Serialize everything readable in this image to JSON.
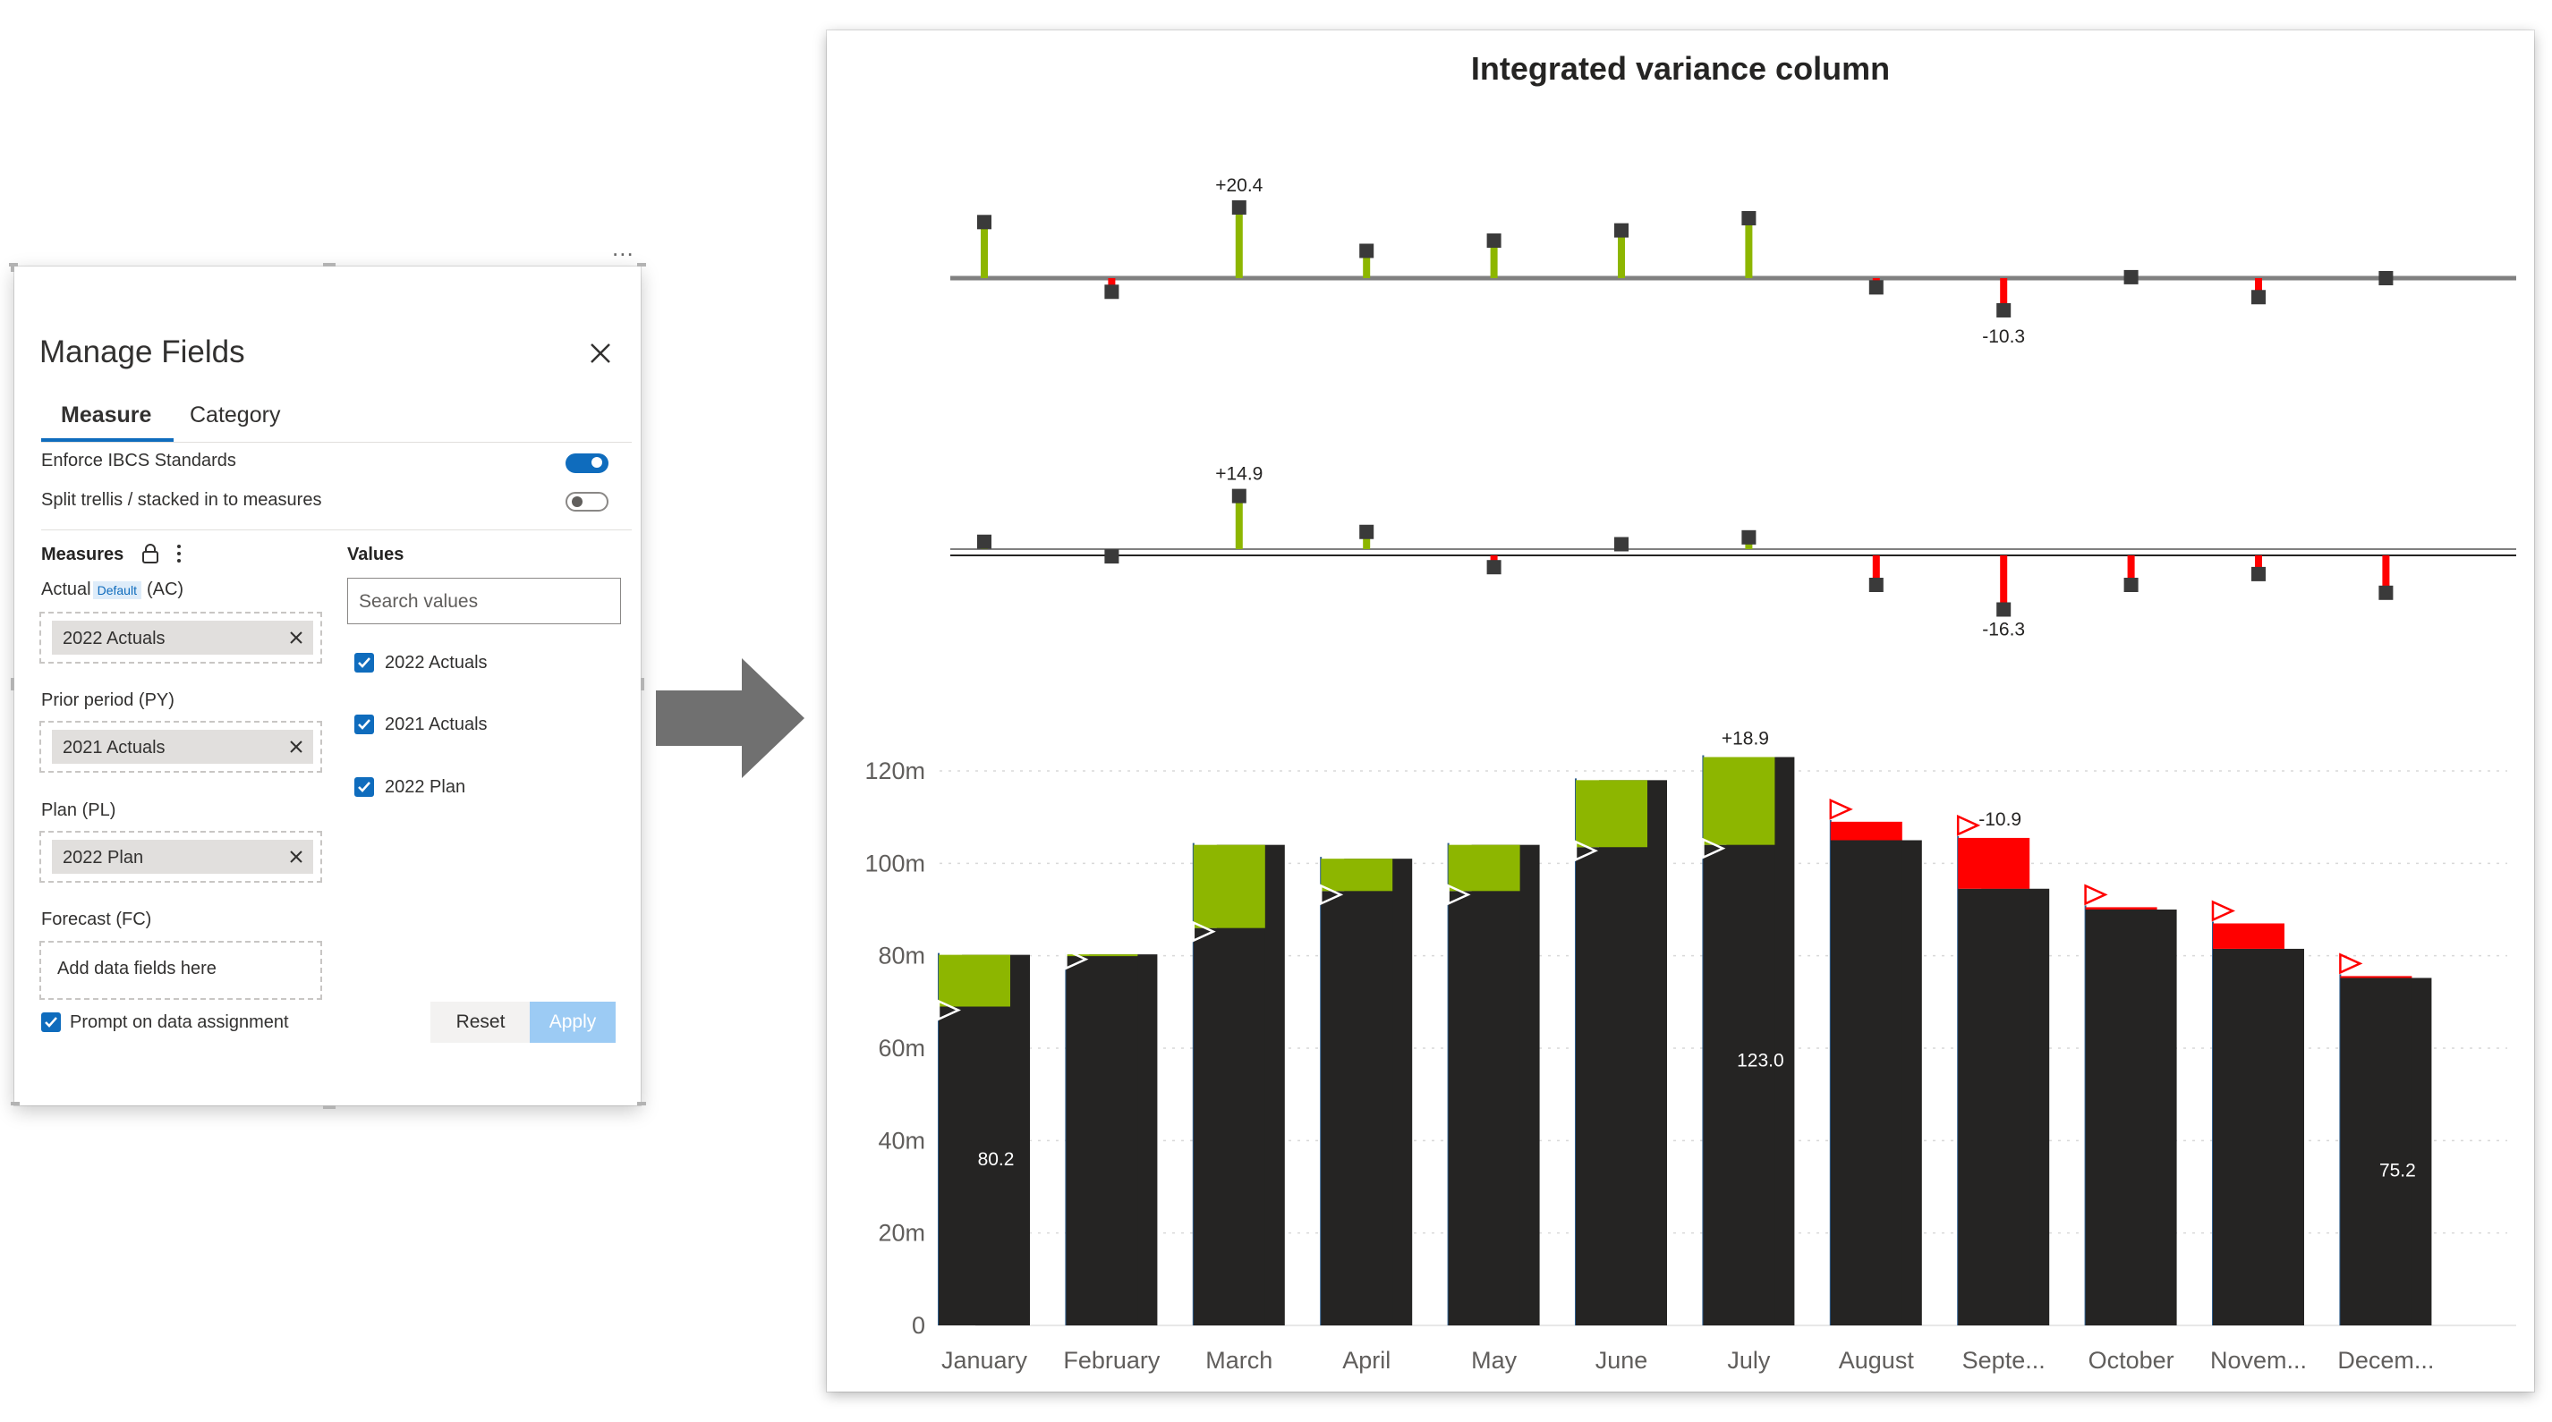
{
  "panel": {
    "title": "Manage Fields",
    "tabs": [
      "Measure",
      "Category"
    ],
    "active_tab": "Measure",
    "options": [
      {
        "label": "Enforce IBCS Standards",
        "on": true
      },
      {
        "label": "Split trellis / stacked in to measures",
        "on": false
      }
    ],
    "measures_head": "Measures",
    "values_head": "Values",
    "fields": [
      {
        "label": "Actual",
        "badge": "Default",
        "suffix": "(AC)",
        "chip": "2022 Actuals"
      },
      {
        "label": "Prior period  (PY)",
        "chip": "2021 Actuals"
      },
      {
        "label": "Plan  (PL)",
        "chip": "2022 Plan"
      },
      {
        "label": "Forecast  (FC)",
        "empty_text": "Add data fields here"
      }
    ],
    "search_placeholder": "Search values",
    "values": [
      {
        "label": "2022 Actuals",
        "checked": true
      },
      {
        "label": "2021 Actuals",
        "checked": true
      },
      {
        "label": "2022 Plan",
        "checked": true
      }
    ],
    "prompt_label": "Prompt on data assignment",
    "prompt_checked": true,
    "reset_label": "Reset",
    "apply_label": "Apply",
    "more_label": "..."
  },
  "chart": {
    "title": "Integrated variance column",
    "colors": {
      "actual": "#252423",
      "positive": "#8db600",
      "negative": "#ff0000",
      "axis": "#808080",
      "pin_head": "#3a3a3a"
    },
    "chart_data": [
      {
        "type": "bar",
        "categories": [
          "January",
          "February",
          "March",
          "April",
          "May",
          "June",
          "July",
          "August",
          "Septe...",
          "October",
          "Novem...",
          "Decem..."
        ],
        "series": [
          {
            "name": "variance_1",
            "values": [
              11.5,
              -2.8,
              14.5,
              5.6,
              7.7,
              9.8,
              12.3,
              -1.9,
              -6.6,
              0.2,
              -3.9,
              0
            ]
          }
        ],
        "annotations": [
          {
            "index": 2,
            "label": "+20.4"
          },
          {
            "index": 8,
            "label": "-10.3"
          }
        ]
      },
      {
        "type": "bar",
        "categories": [
          "January",
          "February",
          "March",
          "April",
          "May",
          "June",
          "July",
          "August",
          "Septe...",
          "October",
          "Novem...",
          "Decem..."
        ],
        "series": [
          {
            "name": "variance_2",
            "values": [
              1.5,
              -0.2,
              10.8,
              3.5,
              -2.4,
              1.0,
              2.4,
              -6.0,
              -11.0,
              -6.0,
              -3.8,
              -7.6
            ]
          }
        ],
        "annotations": [
          {
            "index": 2,
            "label": "+14.9"
          },
          {
            "index": 8,
            "label": "-16.3"
          }
        ]
      },
      {
        "type": "bar",
        "categories": [
          "January",
          "February",
          "March",
          "April",
          "May",
          "June",
          "July",
          "August",
          "Septe...",
          "October",
          "Novem...",
          "Decem..."
        ],
        "yticks": [
          "0",
          "20m",
          "40m",
          "60m",
          "80m",
          "100m",
          "120m"
        ],
        "ylim": [
          0,
          120
        ],
        "series": [
          {
            "name": "2022 Actuals",
            "values": [
              80.2,
              80.3,
              104,
              101,
              104,
              118,
              123.0,
              105,
              94.5,
              90,
              81.5,
              75.2
            ]
          },
          {
            "name": "2022 Plan",
            "values": [
              69,
              80,
              86,
              94,
              94,
              103.5,
              104,
              109,
              105.5,
              90.5,
              87,
              75.6
            ]
          }
        ],
        "bar_labels": [
          {
            "index": 0,
            "label": "80.2"
          },
          {
            "index": 6,
            "label": "123.0"
          },
          {
            "index": 11,
            "label": "75.2"
          }
        ],
        "annotations": [
          {
            "index": 6,
            "label": "+18.9"
          },
          {
            "index": 8,
            "label": "-10.9"
          }
        ],
        "flag_months": [
          0,
          1,
          2,
          3,
          4,
          5,
          6,
          7,
          8,
          9,
          10,
          11
        ]
      }
    ]
  }
}
